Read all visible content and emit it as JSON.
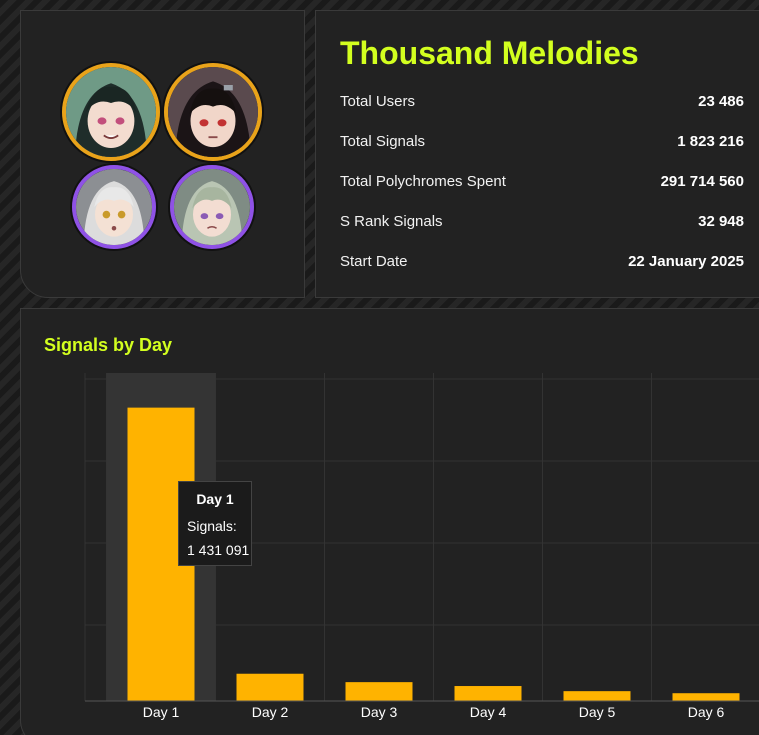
{
  "header": {
    "title": "Thousand Melodies"
  },
  "avatars": [
    {
      "name": "agent-portrait-dark-green-hair",
      "rarity_color": "#e9a31a"
    },
    {
      "name": "agent-portrait-black-hair",
      "rarity_color": "#e9a31a"
    },
    {
      "name": "agent-portrait-white-hair",
      "rarity_color": "#8f52e6"
    },
    {
      "name": "agent-portrait-green-hair",
      "rarity_color": "#8f52e6"
    }
  ],
  "stats": [
    {
      "label": "Total Users",
      "value": "23 486"
    },
    {
      "label": "Total Signals",
      "value": "1 823 216"
    },
    {
      "label": "Total Polychromes Spent",
      "value": "291 714 560"
    },
    {
      "label": "S Rank Signals",
      "value": "32 948"
    },
    {
      "label": "Start Date",
      "value": "22 January 2025"
    }
  ],
  "chart_title": "Signals by Day",
  "chart_data": {
    "type": "bar",
    "categories": [
      "Day 1",
      "Day 2",
      "Day 3",
      "Day 4",
      "Day 5",
      "Day 6"
    ],
    "values": [
      1431091,
      133000,
      92000,
      73000,
      48000,
      38000
    ],
    "ylim": [
      0,
      1600000
    ],
    "grid": true,
    "bar_color": "#ffb300",
    "highlight_index": 0
  },
  "tooltip": {
    "title": "Day 1",
    "label": "Signals:",
    "value": "1 431 091"
  },
  "colors": {
    "accent": "#d3ff1f",
    "bar": "#ffb300",
    "panel": "#222222"
  }
}
